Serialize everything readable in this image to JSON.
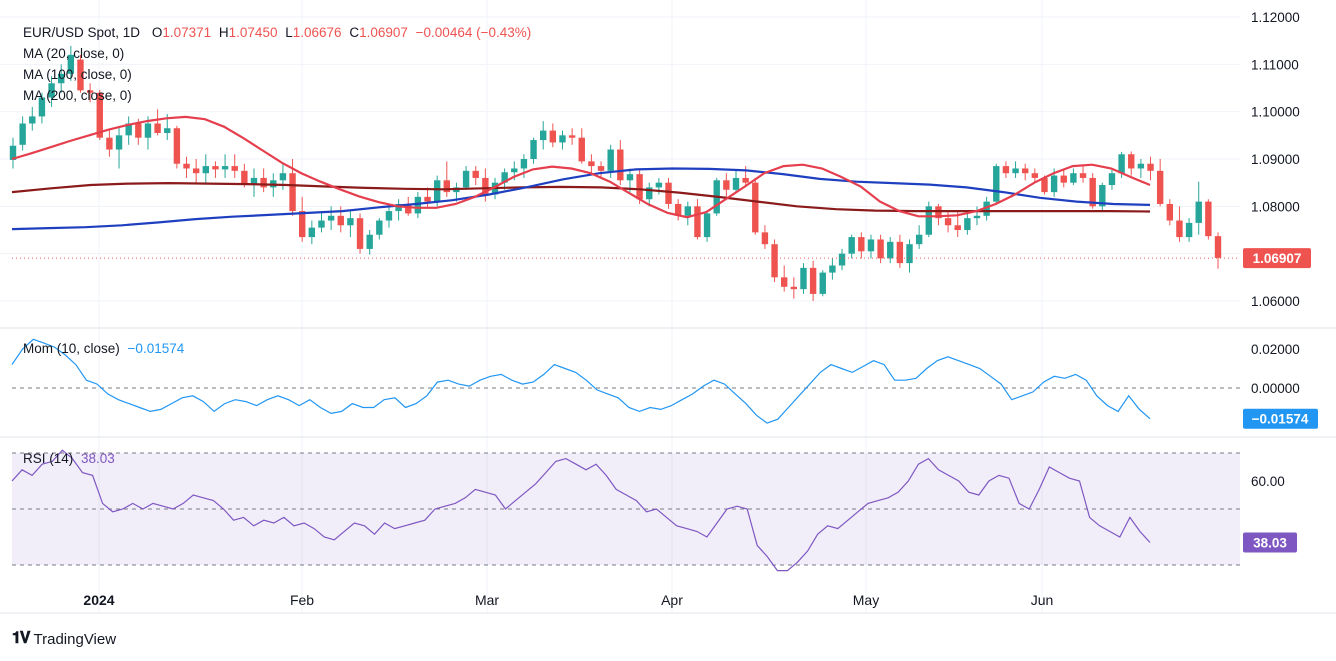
{
  "header": {
    "symbol": "EUR/USD Spot, 1D",
    "ohlc": {
      "o_label": "O",
      "o": "1.07371",
      "h_label": "H",
      "h": "1.07450",
      "l_label": "L",
      "l": "1.06676",
      "c_label": "C",
      "c": "1.06907",
      "change": "−0.00464 (−0.43%)"
    },
    "ma_lines": [
      "MA (20, close, 0)",
      "MA (100, close, 0)",
      "MA (200, close, 0)"
    ],
    "mom_label": "Mom (10, close)",
    "mom_value": "−0.01574",
    "rsi_label": "RSI (14)",
    "rsi_value": "38.03"
  },
  "colors": {
    "up": "#26a69a",
    "down": "#ef5350",
    "ma20": "#e53e4d",
    "ma100": "#1e3fbf",
    "ma200": "#8b1a1a",
    "mom": "#2196f3",
    "rsi": "#7e57c2",
    "price_tag": "#ef5350",
    "mom_tag": "#2196f3",
    "rsi_tag": "#7e57c2"
  },
  "chart_data": [
    {
      "type": "candlestick",
      "title": "EUR/USD Spot, 1D",
      "x_ticks": [
        "2024",
        "Feb",
        "Mar",
        "Apr",
        "May",
        "Jun"
      ],
      "y_ticks": [
        "1.12000",
        "1.11000",
        "1.10000",
        "1.09000",
        "1.08000",
        "1.06000"
      ],
      "ylim": [
        1.058,
        1.121
      ],
      "last_price": "1.06907",
      "candles": [
        [
          1.0898,
          1.0945,
          1.088,
          1.0928
        ],
        [
          1.093,
          1.099,
          1.0918,
          1.0975
        ],
        [
          1.0975,
          1.101,
          1.096,
          1.099
        ],
        [
          1.099,
          1.104,
          1.0975,
          1.103
        ],
        [
          1.103,
          1.1075,
          1.101,
          1.106
        ],
        [
          1.106,
          1.11,
          1.104,
          1.108
        ],
        [
          1.108,
          1.1139,
          1.1065,
          1.112
        ],
        [
          1.111,
          1.112,
          1.104,
          1.1045
        ],
        [
          1.1045,
          1.106,
          1.102,
          1.104
        ],
        [
          1.104,
          1.1046,
          1.094,
          1.0945
        ],
        [
          1.0945,
          1.096,
          1.0905,
          1.092
        ],
        [
          1.092,
          1.097,
          1.088,
          1.095
        ],
        [
          1.095,
          1.099,
          1.093,
          1.0975
        ],
        [
          1.0975,
          1.0985,
          1.093,
          1.0945
        ],
        [
          1.0945,
          1.099,
          1.092,
          1.0975
        ],
        [
          1.0975,
          1.1005,
          1.095,
          1.0955
        ],
        [
          1.0955,
          1.0995,
          1.094,
          1.0965
        ],
        [
          1.0965,
          1.097,
          1.088,
          1.089
        ],
        [
          1.089,
          1.0905,
          1.086,
          1.088
        ],
        [
          1.088,
          1.09,
          1.085,
          1.087
        ],
        [
          1.087,
          1.091,
          1.085,
          1.0885
        ],
        [
          1.0885,
          1.0895,
          1.086,
          1.0878
        ],
        [
          1.0878,
          1.091,
          1.086,
          1.0885
        ],
        [
          1.0885,
          1.091,
          1.086,
          1.0875
        ],
        [
          1.0875,
          1.089,
          1.084,
          1.0845
        ],
        [
          1.0845,
          1.088,
          1.082,
          1.086
        ],
        [
          1.086,
          1.088,
          1.083,
          1.084
        ],
        [
          1.084,
          1.087,
          1.082,
          1.0855
        ],
        [
          1.0855,
          1.089,
          1.0835,
          1.087
        ],
        [
          1.087,
          1.09,
          1.078,
          1.079
        ],
        [
          1.079,
          1.082,
          1.0725,
          1.0735
        ],
        [
          1.0735,
          1.077,
          1.072,
          1.0755
        ],
        [
          1.0755,
          1.079,
          1.0745,
          1.077
        ],
        [
          1.077,
          1.08,
          1.075,
          1.078
        ],
        [
          1.078,
          1.08,
          1.0745,
          1.076
        ],
        [
          1.076,
          1.079,
          1.0735,
          1.0775
        ],
        [
          1.0775,
          1.0785,
          1.07,
          1.071
        ],
        [
          1.071,
          1.075,
          1.0698,
          1.074
        ],
        [
          1.074,
          1.0775,
          1.073,
          1.077
        ],
        [
          1.077,
          1.08,
          1.0755,
          1.079
        ],
        [
          1.079,
          1.0815,
          1.077,
          1.0805
        ],
        [
          1.0805,
          1.082,
          1.078,
          1.0785
        ],
        [
          1.0785,
          1.083,
          1.0775,
          1.082
        ],
        [
          1.082,
          1.084,
          1.0795,
          1.081
        ],
        [
          1.081,
          1.0865,
          1.08,
          1.0855
        ],
        [
          1.0855,
          1.0895,
          1.082,
          1.083
        ],
        [
          1.083,
          1.085,
          1.081,
          1.084
        ],
        [
          1.084,
          1.0885,
          1.0835,
          1.0875
        ],
        [
          1.0875,
          1.0885,
          1.0845,
          1.086
        ],
        [
          1.086,
          1.088,
          1.081,
          1.0825
        ],
        [
          1.0825,
          1.086,
          1.0815,
          1.085
        ],
        [
          1.085,
          1.088,
          1.0835,
          1.0872
        ],
        [
          1.0872,
          1.0895,
          1.0855,
          1.088
        ],
        [
          1.088,
          1.091,
          1.086,
          1.09
        ],
        [
          1.09,
          1.0945,
          1.089,
          1.094
        ],
        [
          1.094,
          1.098,
          1.092,
          1.096
        ],
        [
          1.096,
          1.0975,
          1.0925,
          1.0935
        ],
        [
          1.0935,
          1.096,
          1.092,
          1.095
        ],
        [
          1.095,
          1.0965,
          1.093,
          1.0945
        ],
        [
          1.0945,
          1.0965,
          1.089,
          1.0895
        ],
        [
          1.0895,
          1.091,
          1.087,
          1.0885
        ],
        [
          1.0885,
          1.0895,
          1.086,
          1.0875
        ],
        [
          1.0875,
          1.093,
          1.086,
          1.092
        ],
        [
          1.092,
          1.094,
          1.0845,
          1.0855
        ],
        [
          1.0855,
          1.088,
          1.083,
          1.0868
        ],
        [
          1.0868,
          1.088,
          1.0805,
          1.0815
        ],
        [
          1.0815,
          1.085,
          1.08,
          1.084
        ],
        [
          1.084,
          1.086,
          1.0825,
          1.085
        ],
        [
          1.085,
          1.086,
          1.0795,
          1.0805
        ],
        [
          1.0805,
          1.0815,
          1.077,
          1.078
        ],
        [
          1.078,
          1.081,
          1.076,
          1.08
        ],
        [
          1.08,
          1.0815,
          1.073,
          1.0735
        ],
        [
          1.0735,
          1.079,
          1.0725,
          1.0785
        ],
        [
          1.0785,
          1.086,
          1.078,
          1.0855
        ],
        [
          1.0855,
          1.087,
          1.082,
          1.0835
        ],
        [
          1.0835,
          1.0875,
          1.083,
          1.086
        ],
        [
          1.086,
          1.0885,
          1.084,
          1.085
        ],
        [
          1.085,
          1.086,
          1.074,
          1.0745
        ],
        [
          1.0745,
          1.076,
          1.071,
          1.072
        ],
        [
          1.072,
          1.073,
          1.064,
          1.065
        ],
        [
          1.065,
          1.0675,
          1.062,
          1.063
        ],
        [
          1.063,
          1.065,
          1.0605,
          1.0625
        ],
        [
          1.0625,
          1.068,
          1.0615,
          1.067
        ],
        [
          1.067,
          1.0685,
          1.06,
          1.0615
        ],
        [
          1.0615,
          1.0665,
          1.061,
          1.066
        ],
        [
          1.066,
          1.069,
          1.0645,
          1.0675
        ],
        [
          1.0675,
          1.071,
          1.0665,
          1.07
        ],
        [
          1.07,
          1.074,
          1.069,
          1.0735
        ],
        [
          1.0735,
          1.0745,
          1.069,
          1.0705
        ],
        [
          1.0705,
          1.074,
          1.069,
          1.073
        ],
        [
          1.073,
          1.074,
          1.068,
          1.069
        ],
        [
          1.069,
          1.0735,
          1.068,
          1.0725
        ],
        [
          1.0725,
          1.074,
          1.067,
          1.068
        ],
        [
          1.068,
          1.073,
          1.066,
          1.072
        ],
        [
          1.072,
          1.076,
          1.071,
          1.074
        ],
        [
          1.074,
          1.081,
          1.0735,
          1.08
        ],
        [
          1.08,
          1.0805,
          1.076,
          1.0775
        ],
        [
          1.0775,
          1.079,
          1.0745,
          1.076
        ],
        [
          1.076,
          1.079,
          1.0735,
          1.075
        ],
        [
          1.075,
          1.0785,
          1.074,
          1.0775
        ],
        [
          1.0775,
          1.08,
          1.076,
          1.078
        ],
        [
          1.078,
          1.082,
          1.077,
          1.081
        ],
        [
          1.081,
          1.089,
          1.0805,
          1.0885
        ],
        [
          1.0885,
          1.0895,
          1.086,
          1.087
        ],
        [
          1.087,
          1.0895,
          1.086,
          1.088
        ],
        [
          1.088,
          1.089,
          1.0855,
          1.087
        ],
        [
          1.087,
          1.088,
          1.085,
          1.086
        ],
        [
          1.086,
          1.0865,
          1.0825,
          1.083
        ],
        [
          1.083,
          1.088,
          1.082,
          1.0865
        ],
        [
          1.0865,
          1.088,
          1.084,
          1.085
        ],
        [
          1.085,
          1.088,
          1.0845,
          1.087
        ],
        [
          1.087,
          1.0885,
          1.085,
          1.086
        ],
        [
          1.086,
          1.087,
          1.0795,
          1.08
        ],
        [
          1.08,
          1.085,
          1.079,
          1.0845
        ],
        [
          1.0845,
          1.088,
          1.0835,
          1.087
        ],
        [
          1.087,
          1.0915,
          1.086,
          1.091
        ],
        [
          1.091,
          1.0916,
          1.0865,
          1.088
        ],
        [
          1.088,
          1.09,
          1.086,
          1.089
        ],
        [
          1.089,
          1.0905,
          1.0855,
          1.0875
        ],
        [
          1.0875,
          1.09,
          1.08,
          1.0805
        ],
        [
          1.0805,
          1.0815,
          1.076,
          1.077
        ],
        [
          1.077,
          1.08,
          1.0725,
          1.0735
        ],
        [
          1.0735,
          1.0775,
          1.0725,
          1.0765
        ],
        [
          1.0765,
          1.0852,
          1.074,
          1.081
        ],
        [
          1.081,
          1.0815,
          1.073,
          1.0737
        ],
        [
          1.0737,
          1.0745,
          1.0668,
          1.0691
        ]
      ],
      "ma20": [
        1.09,
        1.0912,
        1.0925,
        1.0938,
        1.095,
        1.0962,
        1.0972,
        1.098,
        1.0986,
        1.0989,
        1.0984,
        1.0968,
        1.0944,
        1.0918,
        1.0892,
        1.087,
        1.0852,
        1.0836,
        1.0821,
        1.0809,
        1.08,
        1.0797,
        1.0797,
        1.0805,
        1.082,
        1.084,
        1.0862,
        1.0878,
        1.0884,
        1.088,
        1.087,
        1.0852,
        1.0828,
        1.0804,
        1.0786,
        1.0777,
        1.0788,
        1.0815,
        1.0842,
        1.087,
        1.0885,
        1.0888,
        1.088,
        1.0862,
        1.0842,
        1.081,
        1.079,
        1.0779,
        1.0779,
        1.0781,
        1.079,
        1.0805,
        1.0825,
        1.085,
        1.087,
        1.0885,
        1.0888,
        1.088,
        1.0862,
        1.0845
      ],
      "ma100": [
        1.0752,
        1.0754,
        1.0756,
        1.076,
        1.0766,
        1.0773,
        1.0778,
        1.0782,
        1.0786,
        1.079,
        1.0798,
        1.0805,
        1.0813,
        1.0825,
        1.084,
        1.0857,
        1.087,
        1.0878,
        1.088,
        1.0879,
        1.0876,
        1.0868,
        1.0858,
        1.0852,
        1.0849,
        1.0846,
        1.084,
        1.083,
        1.0818,
        1.081,
        1.0805,
        1.0803
      ],
      "ma200": [
        1.083,
        1.0838,
        1.0845,
        1.0848,
        1.0849,
        1.0848,
        1.0847,
        1.0845,
        1.0842,
        1.0839,
        1.0837,
        1.0836,
        1.0838,
        1.084,
        1.0841,
        1.084,
        1.0836,
        1.0829,
        1.082,
        1.081,
        1.08,
        1.0794,
        1.0791,
        1.079,
        1.079,
        1.079,
        1.079,
        1.079,
        1.079,
        1.0789
      ]
    },
    {
      "type": "line",
      "title": "Mom (10, close)",
      "y_ticks": [
        "0.02000",
        "0.00000"
      ],
      "ylim": [
        -0.025,
        0.027
      ],
      "last_value": "−0.01574",
      "values": [
        0.012,
        0.02,
        0.025,
        0.023,
        0.021,
        0.017,
        0.012,
        0.004,
        0.002,
        -0.003,
        -0.006,
        -0.008,
        -0.01,
        -0.012,
        -0.011,
        -0.008,
        -0.005,
        -0.004,
        -0.007,
        -0.012,
        -0.008,
        -0.006,
        -0.007,
        -0.009,
        -0.006,
        -0.004,
        -0.006,
        -0.009,
        -0.006,
        -0.01,
        -0.013,
        -0.012,
        -0.008,
        -0.01,
        -0.01,
        -0.006,
        -0.005,
        -0.01,
        -0.008,
        -0.004,
        0.003,
        0.004,
        0.002,
        0.001,
        0.004,
        0.006,
        0.007,
        0.004,
        0.002,
        0.003,
        0.007,
        0.012,
        0.01,
        0.008,
        0.004,
        -0.001,
        -0.003,
        -0.005,
        -0.01,
        -0.012,
        -0.01,
        -0.011,
        -0.009,
        -0.006,
        -0.003,
        0.001,
        0.004,
        0.002,
        -0.003,
        -0.008,
        -0.014,
        -0.018,
        -0.016,
        -0.01,
        -0.004,
        0.002,
        0.008,
        0.012,
        0.01,
        0.008,
        0.011,
        0.014,
        0.012,
        0.004,
        0.004,
        0.005,
        0.01,
        0.014,
        0.016,
        0.014,
        0.012,
        0.01,
        0.006,
        0.002,
        -0.006,
        -0.004,
        -0.002,
        0.003,
        0.006,
        0.005,
        0.007,
        0.004,
        -0.004,
        -0.009,
        -0.012,
        -0.004,
        -0.011,
        -0.01574
      ]
    },
    {
      "type": "line",
      "title": "RSI (14)",
      "y_ticks": [
        "60.00"
      ],
      "levels": [
        70,
        50,
        30
      ],
      "ylim": [
        28.5,
        72
      ],
      "last_value": "38.03",
      "values": [
        60,
        64,
        62,
        66,
        67,
        71,
        68,
        63,
        62,
        52,
        49,
        50,
        52,
        50,
        52,
        51,
        50,
        52,
        55,
        54,
        53,
        50,
        46,
        47,
        44,
        46,
        45,
        47,
        44,
        45,
        43,
        40,
        39,
        42,
        45,
        44,
        41,
        45,
        43,
        44,
        45,
        46,
        50,
        51,
        52,
        54,
        57,
        56,
        55,
        50,
        53,
        56,
        59,
        63,
        67,
        68,
        66,
        64,
        66,
        62,
        57,
        55,
        53,
        49,
        50,
        47,
        44,
        43,
        42,
        40,
        45,
        50,
        51,
        50,
        37,
        33,
        28,
        28,
        31,
        35,
        41,
        44,
        43,
        46,
        49,
        52,
        53,
        54,
        56,
        60,
        66,
        68,
        64,
        62,
        60,
        56,
        55,
        60,
        62,
        61,
        52,
        50,
        57,
        65,
        63,
        61,
        60,
        47,
        44,
        42,
        40,
        47,
        42,
        38.03
      ]
    }
  ]
}
